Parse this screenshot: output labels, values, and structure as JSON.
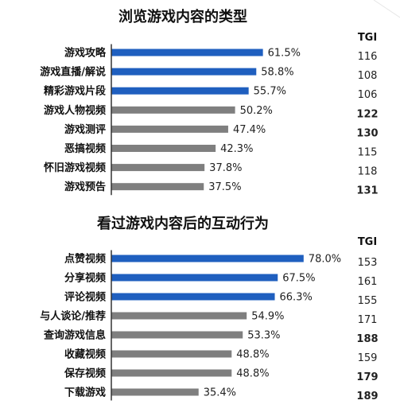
{
  "colors": {
    "blue": "#1f5fbf",
    "gray": "#7f7f7f",
    "tgi_highlight": "#1f3f75",
    "tgi_normal": "#222222"
  },
  "chart_data": [
    {
      "type": "bar",
      "orientation": "horizontal",
      "title": "浏览游戏内容的类型",
      "unit": "%",
      "xlim": [
        0,
        100
      ],
      "categories": [
        "游戏攻略",
        "游戏直播/解说",
        "精彩游戏片段",
        "游戏人物视频",
        "游戏测评",
        "恶搞视频",
        "怀旧游戏视频",
        "游戏预告"
      ],
      "values": [
        61.5,
        58.8,
        55.7,
        50.2,
        47.4,
        42.3,
        37.8,
        37.5
      ],
      "value_labels": [
        "61.5%",
        "58.8%",
        "55.7%",
        "50.2%",
        "47.4%",
        "42.3%",
        "37.8%",
        "37.5%"
      ],
      "bar_colors": [
        "blue",
        "blue",
        "blue",
        "gray",
        "gray",
        "gray",
        "gray",
        "gray"
      ],
      "tgi_header": "TGI",
      "tgi": [
        "116",
        "108",
        "106",
        "122",
        "130",
        "115",
        "118",
        "131"
      ],
      "tgi_highlight": [
        false,
        false,
        false,
        true,
        true,
        false,
        false,
        true
      ]
    },
    {
      "type": "bar",
      "orientation": "horizontal",
      "title": "看过游戏内容后的互动行为",
      "unit": "%",
      "xlim": [
        0,
        100
      ],
      "categories": [
        "点赞视频",
        "分享视频",
        "评论视频",
        "与人谈论/推荐",
        "查询游戏信息",
        "收藏视频",
        "保存视频",
        "下载游戏"
      ],
      "values": [
        78.0,
        67.5,
        66.3,
        54.9,
        53.3,
        48.8,
        48.8,
        35.4
      ],
      "value_labels": [
        "78.0%",
        "67.5%",
        "66.3%",
        "54.9%",
        "53.3%",
        "48.8%",
        "48.8%",
        "35.4%"
      ],
      "bar_colors": [
        "blue",
        "blue",
        "blue",
        "gray",
        "gray",
        "gray",
        "gray",
        "gray"
      ],
      "tgi_header": "TGI",
      "tgi": [
        "153",
        "161",
        "155",
        "171",
        "188",
        "159",
        "179",
        "189"
      ],
      "tgi_highlight": [
        false,
        false,
        false,
        false,
        true,
        false,
        true,
        true
      ]
    }
  ]
}
